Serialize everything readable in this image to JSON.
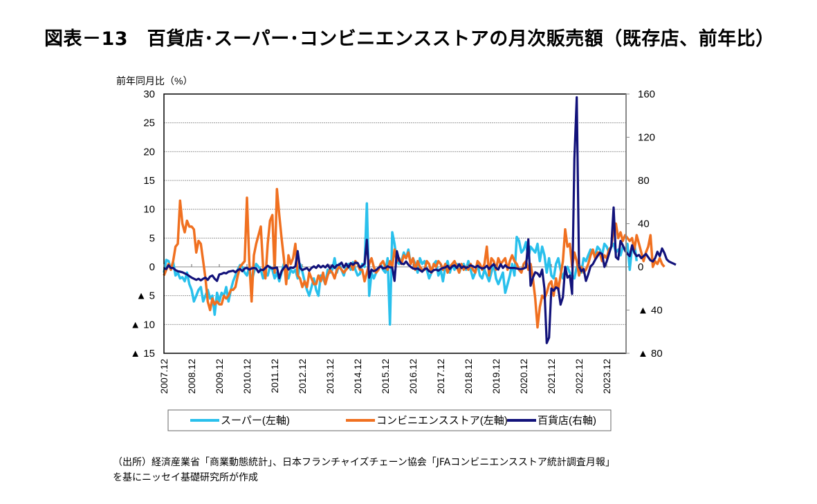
{
  "title": "図表－13　百貨店･スーパー･コンビニエンスストアの月次販売額（既存店、前年比）",
  "note": {
    "line1": "（出所）経済産業省「商業動態統計」、日本フランチャイズチェーン協会「JFAコンビニエンスストア統計調査月報」",
    "line2": "を基にニッセイ基礎研究所が作成"
  },
  "chart_data": {
    "type": "line",
    "title": "図表－13　百貨店･スーパー･コンビニエンスストアの月次販売額（既存店、前年比）",
    "ylabel": "前年同月比（%）",
    "xlabel": "",
    "start": "2007.12",
    "frequency": "monthly",
    "x_tick_labels": [
      "2007.12",
      "2008.12",
      "2009.12",
      "2010.12",
      "2011.12",
      "2012.12",
      "2013.12",
      "2014.12",
      "2015.12",
      "2016.12",
      "2017.12",
      "2018.12",
      "2019.12",
      "2020.12",
      "2021.12",
      "2022.12",
      "2023.12"
    ],
    "y_left": {
      "lim": [
        -15,
        30
      ],
      "ticks": [
        30,
        25,
        20,
        15,
        10,
        5,
        0,
        -5,
        -10,
        -15
      ],
      "tick_labels": [
        "30",
        "25",
        "20",
        "15",
        "10",
        "5",
        "0",
        "▲ 5",
        "▲ 10",
        "▲ 15"
      ]
    },
    "y_right": {
      "lim": [
        -80,
        160
      ],
      "ticks": [
        160,
        120,
        80,
        40,
        0,
        -40,
        -80
      ],
      "tick_labels": [
        "160",
        "120",
        "80",
        "40",
        "0",
        "▲ 40",
        "▲ 80"
      ]
    },
    "grid": true,
    "legend_position": "bottom",
    "legend": [
      "スーパー(左軸)",
      "コンビニエンスストア(左軸)",
      "百貨店(右軸)"
    ],
    "series": [
      {
        "name": "スーパー(左軸)",
        "axis": "left",
        "color": "#29C0EC",
        "values": [
          -1.0,
          1.2,
          1.0,
          -0.5,
          0.8,
          -1.5,
          -1.0,
          -2.0,
          -1.8,
          -2.5,
          -1.0,
          -3.0,
          -4.0,
          -6.0,
          -5.0,
          -4.0,
          -3.5,
          -6.0,
          -5.0,
          -4.0,
          -5.5,
          -5.0,
          -8.3,
          -4.5,
          -6.0,
          -4.5,
          -5.0,
          -3.5,
          -6.0,
          -4.0,
          -2.5,
          -1.5,
          -0.5,
          0.3,
          0.0,
          -1.0,
          -1.5,
          0.0,
          -2.5,
          -1.0,
          0.5,
          0.0,
          -0.5,
          -2.0,
          -1.0,
          -1.5,
          0.0,
          -0.5,
          -2.0,
          -1.0,
          -2.5,
          -1.0,
          0.5,
          -1.5,
          -2.0,
          -0.5,
          -1.0,
          -0.5,
          -2.0,
          0.5,
          -0.8,
          -2.5,
          -4.0,
          -5.0,
          -3.5,
          -2.0,
          -4.0,
          -5.0,
          -1.5,
          -2.0,
          -3.0,
          -0.5,
          -1.0,
          -0.5,
          1.5,
          -1.0,
          0.5,
          -0.5,
          -1.5,
          0.0,
          0.5,
          -0.5,
          0.8,
          -0.5,
          -1.5,
          -1.2,
          0.5,
          0.0,
          11.0,
          -5.0,
          -1.0,
          -2.0,
          -1.0,
          -0.5,
          0.5,
          -0.5,
          -1.0,
          1.5,
          -10.0,
          6.0,
          4.0,
          1.0,
          0.5,
          1.0,
          2.5,
          1.5,
          3.0,
          0.5,
          1.5,
          0.5,
          -1.0,
          1.5,
          0.5,
          1.0,
          -0.5,
          -2.0,
          -1.0,
          0.5,
          1.0,
          -1.5,
          -0.5,
          -2.5,
          0.0,
          1.0,
          -1.0,
          0.5,
          -0.5,
          0.5,
          -1.0,
          0.0,
          0.5,
          -0.5,
          1.0,
          -0.5,
          -2.0,
          -1.0,
          0.5,
          -1.5,
          -2.0,
          -0.5,
          -1.5,
          -2.5,
          -1.0,
          0.5,
          -2.0,
          -3.0,
          -2.0,
          -1.0,
          -4.5,
          -3.0,
          -1.5,
          0.5,
          -1.5,
          5.2,
          4.5,
          2.5,
          3.0,
          4.3,
          1.5,
          3.5,
          3.0,
          2.5,
          4.0,
          1.0,
          3.5,
          2.0,
          -1.0,
          1.5,
          -1.5,
          -2.0,
          0.5,
          1.5,
          -0.5,
          -2.0,
          -0.5,
          0.0,
          -1.0,
          -1.5,
          -2.0,
          0.0,
          0.5,
          -1.0,
          1.5,
          1.0,
          2.0,
          3.0,
          2.5,
          2.0,
          3.5,
          3.0,
          2.0,
          4.0,
          3.5,
          2.5,
          3.5,
          4.0,
          2.5,
          3.0,
          2.0,
          3.5,
          3.0,
          4.0,
          -0.5,
          3.5,
          4.0,
          1.0
        ],
        "note": "values approximated from the figure"
      },
      {
        "name": "コンビニエンスストア(左軸)",
        "axis": "left",
        "color": "#F07020",
        "values": [
          -1.5,
          -0.5,
          0.5,
          -0.5,
          1.0,
          3.5,
          4.0,
          11.5,
          7.5,
          6.0,
          8.0,
          7.0,
          7.0,
          6.5,
          2.5,
          4.5,
          4.0,
          1.0,
          -2.0,
          -6.0,
          -7.5,
          -5.5,
          -6.5,
          -6.0,
          -6.5,
          -6.5,
          -5.0,
          -5.5,
          -5.0,
          -4.0,
          -4.0,
          -3.5,
          -1.5,
          0.0,
          0.5,
          1.0,
          12.0,
          1.0,
          -6.0,
          2.0,
          4.0,
          5.5,
          7.0,
          0.0,
          -2.0,
          4.0,
          8.0,
          9.0,
          -1.0,
          13.5,
          9.0,
          5.0,
          1.5,
          -3.0,
          2.0,
          0.5,
          1.5,
          4.0,
          -1.5,
          -2.0,
          -3.5,
          -2.5,
          -3.5,
          -1.0,
          -2.0,
          -3.0,
          -3.0,
          -1.5,
          -2.5,
          -1.0,
          -3.0,
          -1.5,
          -0.5,
          -1.0,
          -2.0,
          -0.5,
          0.0,
          -0.5,
          -1.0,
          -0.5,
          0.0,
          0.5,
          -0.5,
          1.0,
          0.5,
          -0.5,
          -0.5,
          -2.5,
          -1.0,
          0.5,
          1.5,
          0.0,
          -1.0,
          -0.5,
          0.5,
          1.0,
          0.0,
          -0.5,
          1.0,
          0.0,
          3.0,
          1.0,
          1.5,
          0.5,
          2.0,
          1.5,
          2.5,
          0.5,
          1.5,
          -0.5,
          1.0,
          0.0,
          -0.5,
          -0.5,
          1.0,
          0.5,
          -1.0,
          0.5,
          0.0,
          1.0,
          0.5,
          -0.5,
          0.5,
          -1.0,
          0.0,
          0.5,
          1.0,
          0.0,
          -1.0,
          0.5,
          -0.5,
          0.0,
          -0.5,
          0.5,
          -0.5,
          -1.0,
          1.0,
          0.5,
          -0.5,
          0.5,
          3.5,
          -1.5,
          1.5,
          1.0,
          -0.5,
          1.5,
          0.5,
          1.0,
          1.5,
          -0.5,
          1.0,
          2.0,
          1.0,
          0.5,
          -0.5,
          -1.0,
          0.5,
          1.0,
          -0.5,
          0.5,
          -2.0,
          -5.5,
          -10.5,
          -7.0,
          -5.0,
          -5.5,
          -4.5,
          -3.0,
          -2.5,
          -5.0,
          -2.0,
          -4.0,
          -1.5,
          1.0,
          6.5,
          3.5,
          4.0,
          0.0,
          2.5,
          1.0,
          -1.5,
          0.0,
          -1.0,
          -0.5,
          0.5,
          2.0,
          3.0,
          1.5,
          2.5,
          2.5,
          1.0,
          2.0,
          1.5,
          3.0,
          3.5,
          7.0,
          7.5,
          5.0,
          6.0,
          4.5,
          5.5,
          5.0,
          4.5,
          5.0,
          3.0,
          5.5,
          4.0,
          2.5,
          1.0,
          2.5,
          3.5,
          5.5,
          0.0,
          1.0,
          0.5,
          1.5,
          0.5,
          0.0
        ],
        "note": "values approximated from the figure"
      },
      {
        "name": "百貨店(右軸)",
        "axis": "right",
        "color": "#12127A",
        "values": [
          -1.5,
          -2.0,
          1.5,
          -1.0,
          -1.0,
          -3.0,
          -4.0,
          -4.5,
          -5.0,
          -6.0,
          -7.0,
          -8.5,
          -10.0,
          -11.0,
          -12.0,
          -11.0,
          -12.5,
          -11.0,
          -10.0,
          -12.0,
          -9.0,
          -8.0,
          -11.0,
          -13.0,
          -7.0,
          -6.5,
          -5.5,
          -6.0,
          -4.5,
          -4.0,
          -3.5,
          -5.0,
          -3.0,
          -2.0,
          -4.0,
          -1.5,
          -1.0,
          -2.5,
          -1.5,
          -1.0,
          -1.5,
          -5.0,
          -2.5,
          -3.0,
          -1.0,
          1.0,
          -0.5,
          -1.5,
          -1.0,
          -0.5,
          -10.5,
          -4.0,
          -1.0,
          1.5,
          -2.5,
          -0.5,
          -1.0,
          0.5,
          14.5,
          -1.0,
          -3.0,
          -2.0,
          -1.0,
          -3.5,
          -1.0,
          0.5,
          -1.0,
          1.5,
          -0.5,
          1.0,
          -0.5,
          2.0,
          -1.5,
          1.5,
          -1.0,
          1.5,
          2.0,
          4.0,
          -0.5,
          3.0,
          -0.5,
          3.5,
          2.0,
          4.0,
          3.5,
          -0.5,
          1.0,
          3.0,
          25.0,
          -10.0,
          -2.5,
          -4.0,
          -3.0,
          -1.0,
          0.5,
          -1.5,
          -1.0,
          0.5,
          -0.5,
          -0.5,
          -13.0,
          14.5,
          6.0,
          3.0,
          2.5,
          5.0,
          2.0,
          0.0,
          -1.5,
          -2.0,
          -1.5,
          -3.0,
          -4.5,
          -2.0,
          -1.5,
          -4.0,
          -5.0,
          -3.0,
          -2.5,
          -3.5,
          -2.0,
          -1.0,
          -0.5,
          1.0,
          -2.0,
          0.5,
          1.5,
          -1.0,
          2.5,
          -1.0,
          0.5,
          -1.0,
          0.0,
          1.5,
          0.5,
          -0.5,
          1.0,
          -0.5,
          -1.5,
          -1.0,
          1.0,
          -2.0,
          0.5,
          2.5,
          -1.0,
          -2.5,
          2.5,
          -1.0,
          1.5,
          -0.5,
          -1.0,
          -1.0,
          -1.0,
          -1.5,
          -2.0,
          -2.0,
          -1.5,
          -0.5,
          25.5,
          -17.5,
          -10.0,
          -5.0,
          -6.0,
          -9.0,
          -2.5,
          -20.0,
          -70.5,
          -65.5,
          -20.0,
          -22.0,
          -19.0,
          -20.0,
          -35.0,
          -28.0,
          0.0,
          -10.0,
          -8.0,
          -25.0,
          100.0,
          157.0,
          0.5,
          -4.0,
          -2.0,
          -13.0,
          -7.0,
          0.5,
          2.5,
          6.5,
          10.0,
          13.0,
          12.0,
          0.0,
          5.0,
          12.0,
          19.0,
          55.0,
          9.0,
          7.0,
          24.0,
          20.0,
          15.0,
          12.0,
          10.0,
          20.0,
          13.0,
          10.0,
          11.0,
          8.0,
          10.0,
          12.0,
          9.0,
          6.0,
          5.0,
          8.0,
          14.0,
          10.0,
          17.0,
          13.0,
          7.0,
          5.0,
          4.0,
          3.0,
          2.0
        ],
        "note": "values approximated from the figure"
      }
    ]
  }
}
